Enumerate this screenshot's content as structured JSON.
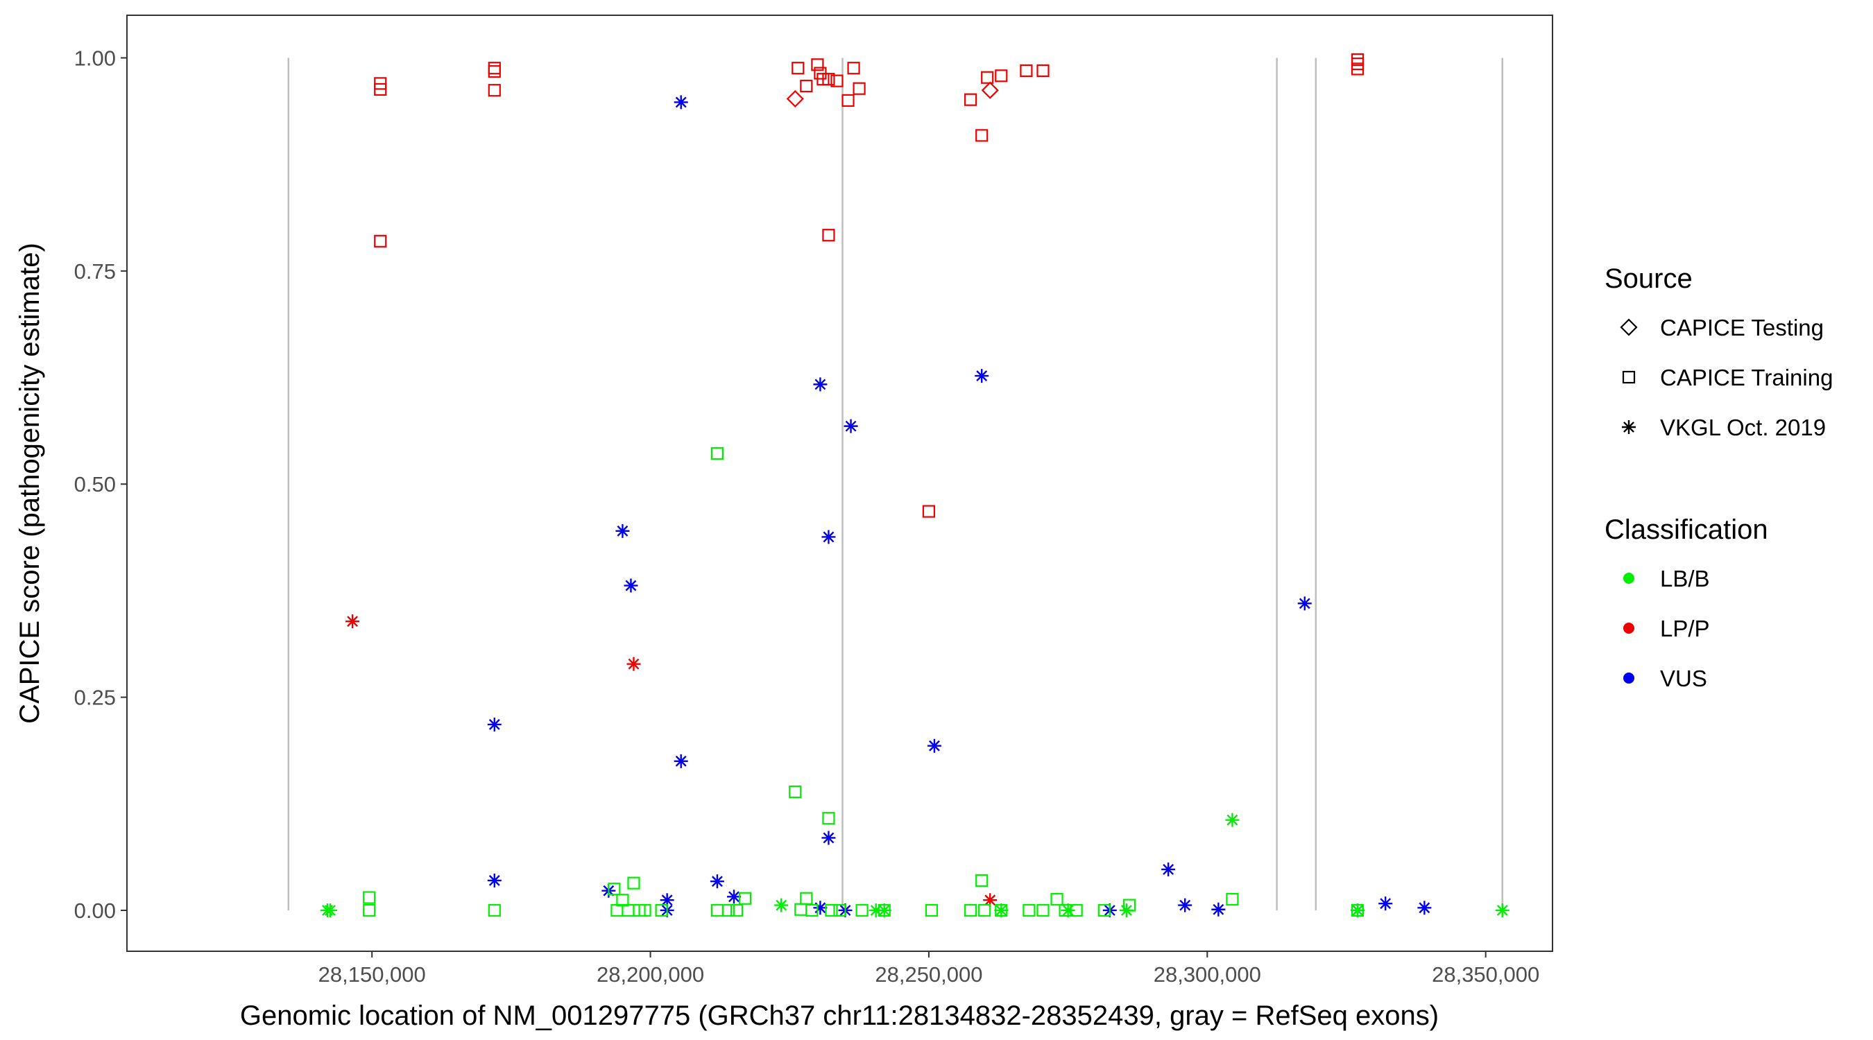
{
  "chart_data": {
    "type": "scatter",
    "xlabel": "Genomic location of NM_001297775 (GRCh37 chr11:28134832-28352439, gray = RefSeq exons)",
    "ylabel": "CAPICE score (pathogenicity estimate)",
    "xlim": [
      28106000,
      28362000
    ],
    "ylim": [
      -0.048,
      1.05
    ],
    "x_ticks": [
      28150000,
      28200000,
      28250000,
      28300000,
      28350000
    ],
    "x_tick_labels": [
      "28,150,000",
      "28,200,000",
      "28,250,000",
      "28,300,000",
      "28,350,000"
    ],
    "y_ticks": [
      0,
      0.25,
      0.5,
      0.75,
      1.0
    ],
    "y_tick_labels": [
      "0.00",
      "0.25",
      "0.50",
      "0.75",
      "1.00"
    ],
    "grid": false,
    "exon_lines": [
      28135000,
      28234500,
      28312500,
      28319500,
      28353000
    ],
    "legend": {
      "position": "right",
      "source_title": "Source",
      "source_items": [
        {
          "label": "CAPICE Testing",
          "shape": "diamond"
        },
        {
          "label": "CAPICE Training",
          "shape": "square"
        },
        {
          "label": "VKGL Oct. 2019",
          "shape": "asterisk"
        }
      ],
      "class_title": "Classification",
      "class_items": [
        {
          "label": "LB/B",
          "color": "#00ee00"
        },
        {
          "label": "LP/P",
          "color": "#ee0000"
        },
        {
          "label": "VUS",
          "color": "#0000ee"
        }
      ]
    },
    "series": [
      {
        "source": "CAPICE Training",
        "classification": "LP/P",
        "points": [
          [
            28151500,
            0.97
          ],
          [
            28151500,
            0.963
          ],
          [
            28151500,
            0.785
          ],
          [
            28172000,
            0.988
          ],
          [
            28172000,
            0.984
          ],
          [
            28172000,
            0.962
          ],
          [
            28226500,
            0.988
          ],
          [
            28228000,
            0.967
          ],
          [
            28230000,
            0.992
          ],
          [
            28230500,
            0.982
          ],
          [
            28231000,
            0.975
          ],
          [
            28232000,
            0.975
          ],
          [
            28233500,
            0.973
          ],
          [
            28235500,
            0.95
          ],
          [
            28236500,
            0.988
          ],
          [
            28237500,
            0.964
          ],
          [
            28232000,
            0.792
          ],
          [
            28250000,
            0.468
          ],
          [
            28257500,
            0.951
          ],
          [
            28259500,
            0.909
          ],
          [
            28260500,
            0.977
          ],
          [
            28263000,
            0.979
          ],
          [
            28267500,
            0.985
          ],
          [
            28270500,
            0.985
          ],
          [
            28327000,
            0.998
          ],
          [
            28327000,
            0.993
          ],
          [
            28327000,
            0.987
          ]
        ]
      },
      {
        "source": "CAPICE Testing",
        "classification": "LP/P",
        "points": [
          [
            28226000,
            0.952
          ],
          [
            28261000,
            0.962
          ]
        ]
      },
      {
        "source": "VKGL Oct. 2019",
        "classification": "LP/P",
        "points": [
          [
            28146500,
            0.339
          ],
          [
            28197000,
            0.289
          ],
          [
            28261000,
            0.012
          ]
        ]
      },
      {
        "source": "VKGL Oct. 2019",
        "classification": "VUS",
        "points": [
          [
            28205500,
            0.948
          ],
          [
            28230500,
            0.617
          ],
          [
            28236000,
            0.568
          ],
          [
            28232000,
            0.438
          ],
          [
            28259500,
            0.627
          ],
          [
            28195000,
            0.445
          ],
          [
            28196500,
            0.381
          ],
          [
            28172000,
            0.218
          ],
          [
            28205500,
            0.175
          ],
          [
            28251000,
            0.193
          ],
          [
            28232000,
            0.085
          ],
          [
            28172000,
            0.035
          ],
          [
            28192500,
            0.023
          ],
          [
            28203000,
            0.012
          ],
          [
            28212000,
            0.034
          ],
          [
            28215000,
            0.016
          ],
          [
            28203000,
            0.0
          ],
          [
            28230500,
            0.003
          ],
          [
            28235000,
            0.0
          ],
          [
            28317500,
            0.36
          ],
          [
            28293000,
            0.048
          ],
          [
            28282500,
            0.0
          ],
          [
            28296000,
            0.006
          ],
          [
            28302000,
            0.001
          ],
          [
            28327000,
            0.0
          ],
          [
            28332000,
            0.008
          ],
          [
            28339000,
            0.003
          ]
        ]
      },
      {
        "source": "VKGL Oct. 2019",
        "classification": "LB/B",
        "points": [
          [
            28142000,
            0.0
          ],
          [
            28142500,
            0.0
          ],
          [
            28223500,
            0.006
          ],
          [
            28240500,
            0.0
          ],
          [
            28242000,
            0.0
          ],
          [
            28263000,
            0.0
          ],
          [
            28275000,
            0.0
          ],
          [
            28285500,
            0.0
          ],
          [
            28304500,
            0.106
          ],
          [
            28327000,
            0.0
          ],
          [
            28353000,
            0.0
          ]
        ]
      },
      {
        "source": "CAPICE Training",
        "classification": "LB/B",
        "points": [
          [
            28149500,
            0.015
          ],
          [
            28149500,
            0.0
          ],
          [
            28172000,
            0.0
          ],
          [
            28193500,
            0.025
          ],
          [
            28194000,
            0.0
          ],
          [
            28195000,
            0.012
          ],
          [
            28196000,
            0.0
          ],
          [
            28197000,
            0.032
          ],
          [
            28198000,
            0.0
          ],
          [
            28199000,
            0.0
          ],
          [
            28202000,
            0.0
          ],
          [
            28212000,
            0.536
          ],
          [
            28212000,
            0.0
          ],
          [
            28214000,
            0.0
          ],
          [
            28215500,
            0.0
          ],
          [
            28217000,
            0.014
          ],
          [
            28226000,
            0.139
          ],
          [
            28227000,
            0.001
          ],
          [
            28228000,
            0.014
          ],
          [
            28229000,
            0.0
          ],
          [
            28232000,
            0.108
          ],
          [
            28232500,
            0.0
          ],
          [
            28234000,
            0.0
          ],
          [
            28238000,
            0.0
          ],
          [
            28242000,
            0.0
          ],
          [
            28250500,
            0.0
          ],
          [
            28257500,
            0.0
          ],
          [
            28259500,
            0.035
          ],
          [
            28260000,
            0.0
          ],
          [
            28263000,
            0.0
          ],
          [
            28268000,
            0.0
          ],
          [
            28270500,
            0.0
          ],
          [
            28273000,
            0.013
          ],
          [
            28274500,
            0.0
          ],
          [
            28276500,
            0.0
          ],
          [
            28281500,
            0.0
          ],
          [
            28286000,
            0.006
          ],
          [
            28304500,
            0.013
          ],
          [
            28327000,
            0.0
          ]
        ]
      }
    ]
  }
}
